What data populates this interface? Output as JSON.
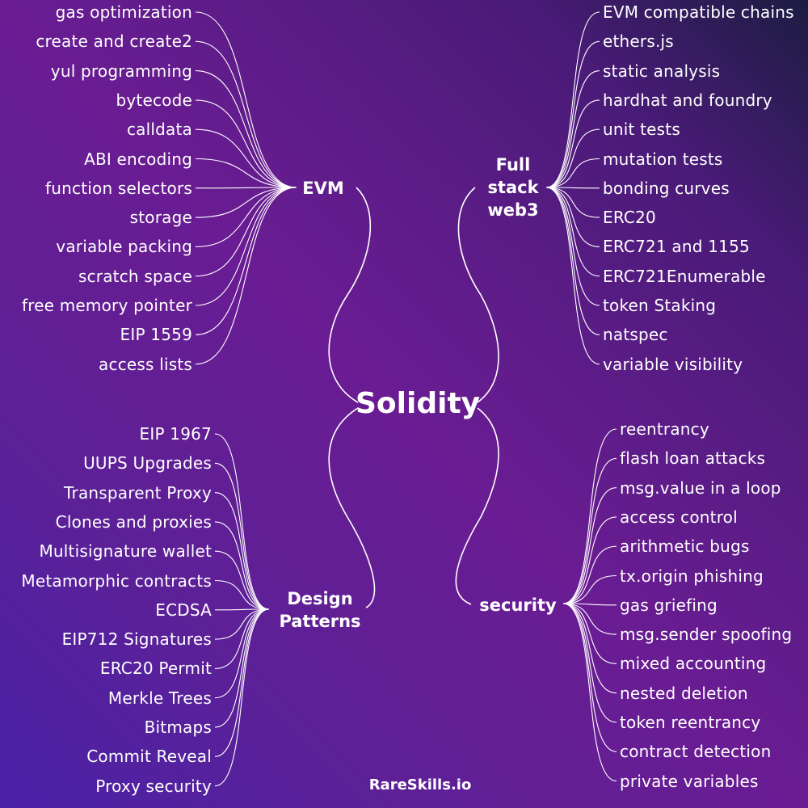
{
  "colors": {
    "background_top_right": "#1c1c42",
    "background_mid": "#6a1c93",
    "background_bottom_left": "#4a22a8",
    "line": "#ffffff",
    "text": "#ffffff"
  },
  "center": {
    "title": "Solidity"
  },
  "brand": {
    "text": "RareSkills.io"
  },
  "branches": {
    "evm": {
      "label": "EVM",
      "items": [
        "gas optimization",
        "create and create2",
        "yul programming",
        "bytecode",
        "calldata",
        "ABI encoding",
        "function selectors",
        "storage",
        "variable packing",
        "scratch space",
        "free memory pointer",
        "EIP 1559",
        "access lists"
      ]
    },
    "fullstack": {
      "label_lines": [
        "Full",
        "stack",
        "web3"
      ],
      "items": [
        "EVM compatible chains",
        "ethers.js",
        "static analysis",
        "hardhat and foundry",
        "unit tests",
        "mutation tests",
        "bonding curves",
        "ERC20",
        "ERC721 and 1155",
        "ERC721Enumerable",
        "token Staking",
        "natspec",
        "variable visibility"
      ]
    },
    "design": {
      "label_lines": [
        "Design",
        "Patterns"
      ],
      "items": [
        "EIP 1967",
        "UUPS Upgrades",
        "Transparent Proxy",
        "Clones and proxies",
        "Multisignature wallet",
        "Metamorphic contracts",
        "ECDSA",
        "EIP712 Signatures",
        "ERC20 Permit",
        "Merkle Trees",
        "Bitmaps",
        "Commit Reveal",
        "Proxy security"
      ]
    },
    "security": {
      "label": "security",
      "items": [
        "reentrancy",
        "flash loan attacks",
        "msg.value in a loop",
        "access control",
        "arithmetic bugs",
        "tx.origin phishing",
        "gas griefing",
        "msg.sender spoofing",
        "mixed accounting",
        "nested deletion",
        "token reentrancy",
        "contract detection",
        "private variables"
      ]
    }
  }
}
